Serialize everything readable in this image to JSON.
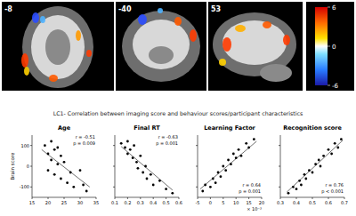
{
  "figure": {
    "slices": [
      "-8",
      "-40",
      "53"
    ],
    "colorbar": {
      "range": [
        -6,
        6
      ],
      "ticks": [
        6,
        0,
        -6
      ]
    },
    "caption": "LC1- Correlation between imaging score and behaviour scores/participant characteristics"
  },
  "chart_data": [
    {
      "type": "scatter",
      "title": "Age",
      "annotations": [
        "r = -0.51",
        "p = 0.009"
      ],
      "y_label": "Brain score",
      "x": [
        19,
        20,
        20,
        21,
        21,
        22,
        22,
        23,
        23,
        24,
        24,
        25,
        26,
        27,
        28,
        30,
        31,
        32
      ],
      "values": [
        100,
        60,
        -20,
        120,
        30,
        80,
        -40,
        90,
        10,
        50,
        -60,
        20,
        -80,
        -30,
        -100,
        -20,
        -90,
        -120
      ],
      "trend_line": {
        "x": [
          18,
          33
        ],
        "values": [
          80,
          -100
        ]
      },
      "xlim": [
        15,
        35
      ],
      "xticks": [
        15,
        20,
        25,
        30,
        35
      ],
      "ylim": [
        -150,
        150
      ],
      "yticks": [
        -100,
        0,
        100
      ],
      "color": "#000000",
      "marker": "circle"
    },
    {
      "type": "scatter",
      "title": "Final RT",
      "annotations": [
        "r = -0.63",
        "p = 0.001"
      ],
      "x": [
        0.15,
        0.18,
        0.2,
        0.2,
        0.22,
        0.24,
        0.25,
        0.27,
        0.28,
        0.3,
        0.32,
        0.34,
        0.35,
        0.38,
        0.4,
        0.45,
        0.5,
        0.55
      ],
      "values": [
        110,
        90,
        120,
        60,
        80,
        40,
        100,
        20,
        -10,
        50,
        -30,
        0,
        -60,
        -40,
        -90,
        -70,
        -110,
        -130
      ],
      "trend_line": {
        "x": [
          0.15,
          0.55
        ],
        "values": [
          95,
          -115
        ]
      },
      "xlim": [
        0.1,
        0.6
      ],
      "xticks": [
        0.1,
        0.2,
        0.3,
        0.4,
        0.5,
        0.6
      ],
      "ylim": [
        -150,
        150
      ],
      "yticks": [
        -100,
        0,
        100
      ],
      "tick_labels": "x",
      "color": "#000000",
      "marker": "circle"
    },
    {
      "type": "scatter",
      "title": "Learning Factor",
      "annotations": [
        "r = 0.64",
        "p = 0.001"
      ],
      "x_multiplier": "× 10⁻³",
      "x": [
        -3,
        -2,
        0,
        1,
        2,
        3,
        4,
        5,
        6,
        7,
        8,
        9,
        10,
        11,
        12,
        14,
        15,
        17
      ],
      "values": [
        -120,
        -90,
        -100,
        -60,
        -80,
        -30,
        -50,
        0,
        -20,
        30,
        10,
        60,
        40,
        80,
        50,
        110,
        90,
        130
      ],
      "trend_line": {
        "x": [
          -4,
          18
        ],
        "values": [
          -110,
          120
        ]
      },
      "xlim": [
        -5,
        20
      ],
      "xticks": [
        -5,
        0,
        5,
        10,
        15,
        20
      ],
      "ylim": [
        -150,
        150
      ],
      "yticks": [
        -100,
        0,
        100
      ],
      "tick_labels": "x",
      "color": "#000000",
      "marker": "circle"
    },
    {
      "type": "scatter",
      "title": "Recognition score",
      "annotations": [
        "r = 0.76",
        "p < 0.001"
      ],
      "x": [
        0.35,
        0.38,
        0.4,
        0.42,
        0.43,
        0.45,
        0.46,
        0.48,
        0.5,
        0.52,
        0.54,
        0.55,
        0.57,
        0.6,
        0.62,
        0.64,
        0.66,
        0.68
      ],
      "values": [
        -130,
        -100,
        -110,
        -70,
        -90,
        -40,
        -60,
        -20,
        -30,
        10,
        30,
        0,
        50,
        80,
        60,
        110,
        90,
        130
      ],
      "trend_line": {
        "x": [
          0.34,
          0.69
        ],
        "values": [
          -125,
          125
        ]
      },
      "xlim": [
        0.3,
        0.7
      ],
      "xticks": [
        0.3,
        0.4,
        0.5,
        0.6,
        0.7
      ],
      "ylim": [
        -150,
        150
      ],
      "yticks": [
        -100,
        0,
        100
      ],
      "tick_labels": "x",
      "color": "#000000",
      "marker": "circle"
    }
  ]
}
